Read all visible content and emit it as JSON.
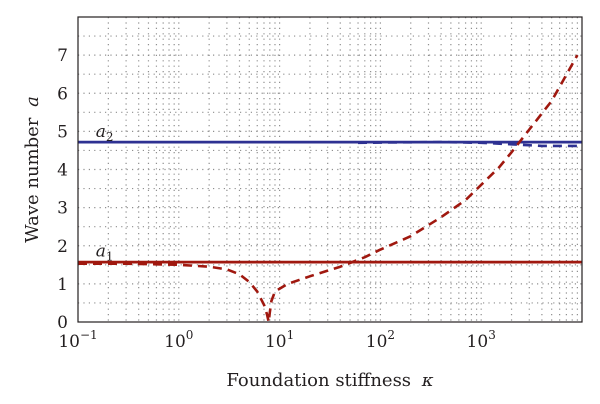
{
  "chart_data": {
    "type": "line",
    "xscale": "log",
    "xlim": [
      0.1,
      10000
    ],
    "ylim": [
      0,
      8
    ],
    "grid": true,
    "xlabel_prefix": "Foundation stiffness",
    "xlabel_symbol": "κ",
    "ylabel_prefix": "Wave number",
    "ylabel_symbol": "a",
    "xticks": [
      {
        "value": 0.1,
        "base": "10",
        "exp": "−1"
      },
      {
        "value": 1,
        "base": "10",
        "exp": "0"
      },
      {
        "value": 10,
        "base": "10",
        "exp": "1"
      },
      {
        "value": 100,
        "base": "10",
        "exp": "2"
      },
      {
        "value": 1000,
        "base": "10",
        "exp": "3"
      }
    ],
    "yticks": [
      0,
      1,
      2,
      3,
      4,
      5,
      6,
      7
    ],
    "annotations": [
      {
        "base": "a",
        "sub": "1",
        "x": 0.15,
        "y": 1.72
      },
      {
        "base": "a",
        "sub": "2",
        "x": 0.15,
        "y": 4.85
      }
    ],
    "series": [
      {
        "style": "solid",
        "color": "#2e3192",
        "x": [
          0.1,
          10000
        ],
        "y": [
          4.72,
          4.72
        ]
      },
      {
        "style": "solid",
        "color": "#a0180f",
        "x": [
          0.1,
          10000
        ],
        "y": [
          1.57,
          1.57
        ]
      },
      {
        "style": "dashed",
        "color": "#2e3192",
        "x": [
          60,
          150,
          400,
          1000,
          2000,
          4000,
          9000
        ],
        "y": [
          4.7,
          4.71,
          4.72,
          4.7,
          4.66,
          4.62,
          4.62
        ]
      },
      {
        "style": "dashed",
        "color": "#a0180f",
        "x": [
          0.1,
          0.3,
          1,
          2,
          3,
          4,
          5,
          6,
          7,
          7.5,
          7.8,
          8,
          8.3,
          9,
          12,
          20,
          40,
          70,
          100,
          200,
          400,
          700,
          1000,
          1500,
          2000,
          3000,
          5000,
          9000
        ],
        "y": [
          1.53,
          1.53,
          1.5,
          1.45,
          1.38,
          1.25,
          1.05,
          0.8,
          0.45,
          0.2,
          0.0,
          0.25,
          0.55,
          0.8,
          1.0,
          1.2,
          1.45,
          1.7,
          1.9,
          2.25,
          2.75,
          3.2,
          3.6,
          4.05,
          4.45,
          5.05,
          5.8,
          7.0
        ]
      }
    ]
  }
}
